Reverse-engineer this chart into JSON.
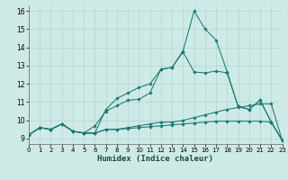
{
  "background_color": "#ceeae7",
  "grid_color": "#b8d8d5",
  "line_color": "#1a7a6e",
  "xlabel": "Humidex (Indice chaleur)",
  "x_ticks": [
    0,
    1,
    2,
    3,
    4,
    5,
    6,
    7,
    8,
    9,
    10,
    11,
    12,
    13,
    14,
    15,
    16,
    17,
    18,
    19,
    20,
    21,
    22,
    23
  ],
  "xlim": [
    0,
    23
  ],
  "ylim": [
    8.7,
    16.3
  ],
  "y_ticks": [
    9,
    10,
    11,
    12,
    13,
    14,
    15,
    16
  ],
  "series": [
    [
      9.2,
      9.6,
      9.5,
      9.8,
      9.4,
      9.3,
      9.3,
      9.5,
      9.5,
      9.55,
      9.6,
      9.65,
      9.7,
      9.75,
      9.8,
      9.85,
      9.9,
      9.95,
      9.95,
      9.95,
      9.95,
      9.95,
      9.9,
      8.9
    ],
    [
      9.2,
      9.6,
      9.5,
      9.8,
      9.4,
      9.3,
      9.3,
      9.5,
      9.5,
      9.6,
      9.7,
      9.8,
      9.9,
      9.9,
      10.0,
      10.15,
      10.3,
      10.45,
      10.6,
      10.7,
      10.8,
      10.9,
      10.9,
      8.9
    ],
    [
      9.2,
      9.6,
      9.5,
      9.8,
      9.4,
      9.3,
      9.7,
      10.5,
      10.8,
      11.1,
      11.15,
      11.5,
      12.8,
      12.9,
      13.75,
      12.65,
      12.6,
      12.7,
      12.6,
      10.75,
      10.6,
      11.1,
      9.9,
      8.9
    ],
    [
      9.2,
      9.6,
      9.5,
      9.8,
      9.4,
      9.3,
      9.3,
      10.6,
      11.2,
      11.5,
      11.8,
      12.0,
      12.8,
      12.9,
      13.8,
      16.0,
      15.0,
      14.4,
      12.65,
      10.75,
      10.6,
      11.1,
      9.9,
      8.9
    ]
  ]
}
